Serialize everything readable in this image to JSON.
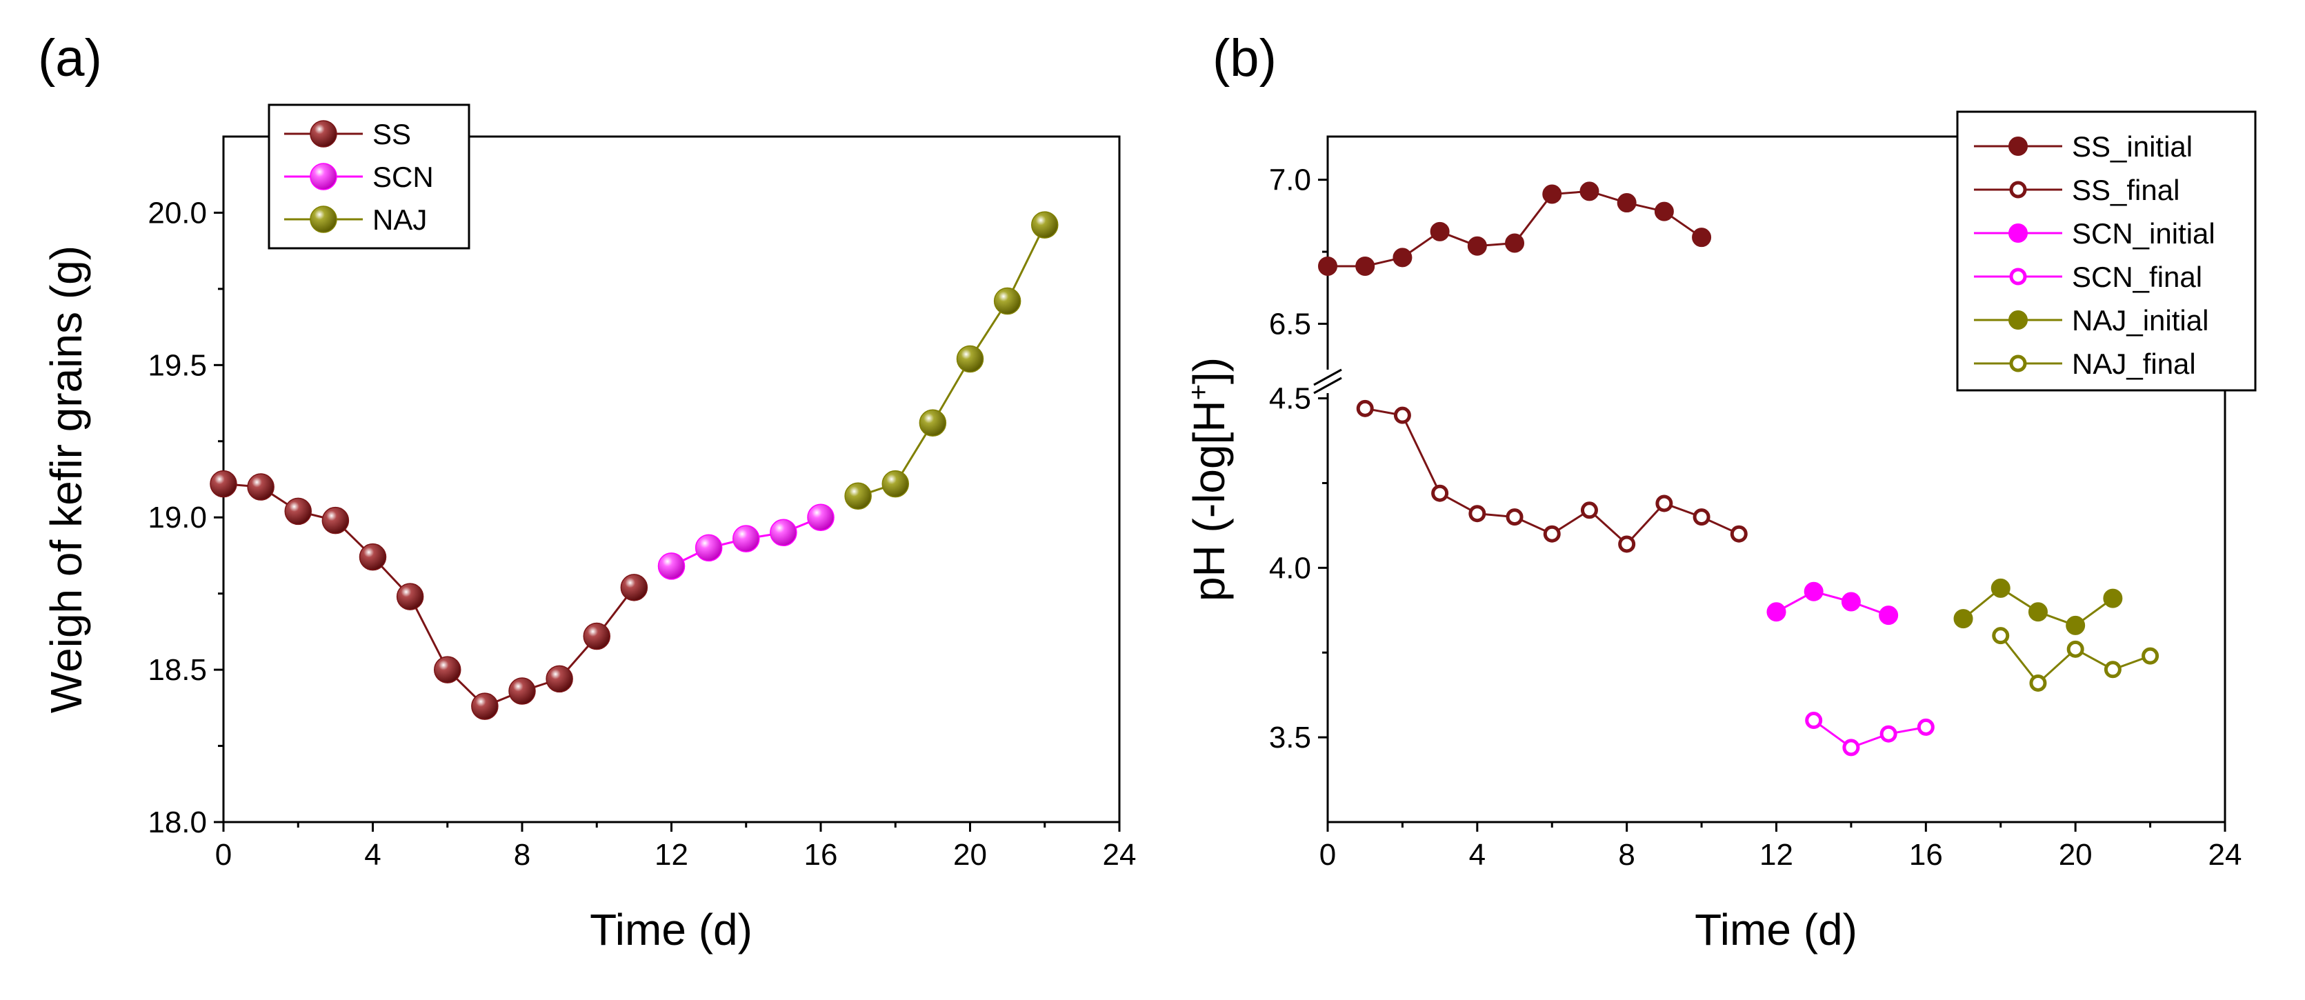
{
  "chart_data": [
    {
      "panel": "(a)",
      "type": "line",
      "xlabel": "Time (d)",
      "ylabel": "Weigh of kefir grains (g)",
      "xlim": [
        0,
        24
      ],
      "ylim": [
        18.0,
        20.25
      ],
      "xticks": [
        "0",
        "4",
        "8",
        "12",
        "16",
        "20",
        "24"
      ],
      "yticks": [
        "18.0",
        "18.5",
        "19.0",
        "19.5",
        "20.0"
      ],
      "legend_position": "top-left",
      "series": [
        {
          "name": "SS",
          "color": "#7b1416",
          "marker": "sphere",
          "x": [
            0,
            1,
            2,
            3,
            4,
            5,
            6,
            7,
            8,
            9,
            10,
            11
          ],
          "y": [
            19.11,
            19.1,
            19.02,
            18.99,
            18.87,
            18.74,
            18.5,
            18.38,
            18.43,
            18.47,
            18.61,
            18.77
          ]
        },
        {
          "name": "SCN",
          "color": "#ff00ff",
          "marker": "sphere",
          "x": [
            12,
            13,
            14,
            15,
            16
          ],
          "y": [
            18.84,
            18.9,
            18.93,
            18.95,
            19.0
          ]
        },
        {
          "name": "NAJ",
          "color": "#808000",
          "marker": "sphere",
          "x": [
            17,
            18,
            19,
            20,
            21,
            22
          ],
          "y": [
            19.07,
            19.11,
            19.31,
            19.52,
            19.71,
            19.96
          ]
        }
      ]
    },
    {
      "panel": "(b)",
      "type": "line",
      "xlabel": "Time (d)",
      "ylabel_main": "pH (-log[H",
      "ylabel_sup": "+",
      "ylabel_end": "])",
      "xlim": [
        0,
        24
      ],
      "y_break": {
        "lower": [
          3.25,
          4.55
        ],
        "upper": [
          6.3,
          7.15
        ]
      },
      "xticks": [
        "0",
        "4",
        "8",
        "12",
        "16",
        "20",
        "24"
      ],
      "yticks_lower": [
        "3.5",
        "4.0",
        "4.5"
      ],
      "yticks_upper": [
        "6.5",
        "7.0"
      ],
      "legend_position": "top-right",
      "series": [
        {
          "name": "SS_initial",
          "color": "#7b1416",
          "filled": true,
          "x": [
            0,
            1,
            2,
            3,
            4,
            5,
            6,
            7,
            8,
            9,
            10
          ],
          "y": [
            6.7,
            6.7,
            6.73,
            6.82,
            6.77,
            6.78,
            6.95,
            6.96,
            6.92,
            6.89,
            6.8
          ]
        },
        {
          "name": "SS_final",
          "color": "#7b1416",
          "filled": false,
          "x": [
            1,
            2,
            3,
            4,
            5,
            6,
            7,
            8,
            9,
            10,
            11
          ],
          "y": [
            4.47,
            4.45,
            4.22,
            4.16,
            4.15,
            4.1,
            4.17,
            4.07,
            4.19,
            4.15,
            4.1
          ]
        },
        {
          "name": "SCN_initial",
          "color": "#ff00ff",
          "filled": true,
          "x": [
            12,
            13,
            14,
            15
          ],
          "y": [
            3.87,
            3.93,
            3.9,
            3.86
          ]
        },
        {
          "name": "SCN_final",
          "color": "#ff00ff",
          "filled": false,
          "x": [
            13,
            14,
            15,
            16
          ],
          "y": [
            3.55,
            3.47,
            3.51,
            3.53
          ]
        },
        {
          "name": "NAJ_initial",
          "color": "#808000",
          "filled": true,
          "x": [
            17,
            18,
            19,
            20,
            21
          ],
          "y": [
            3.85,
            3.94,
            3.87,
            3.83,
            3.91
          ]
        },
        {
          "name": "NAJ_final",
          "color": "#808000",
          "filled": false,
          "x": [
            18,
            19,
            20,
            21,
            22
          ],
          "y": [
            3.8,
            3.66,
            3.76,
            3.7,
            3.74
          ]
        }
      ]
    }
  ]
}
